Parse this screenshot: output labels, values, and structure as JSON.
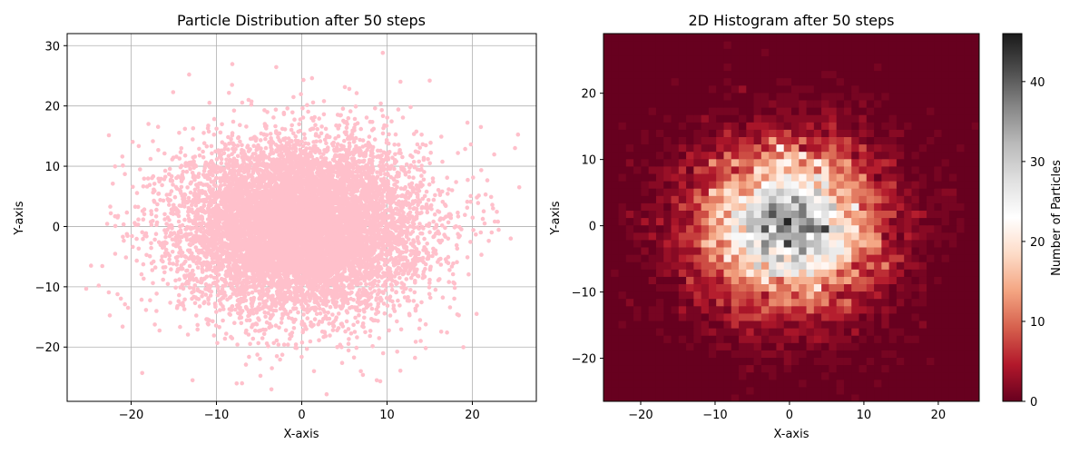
{
  "chart_data": [
    {
      "type": "scatter",
      "title": "Particle Distribution after 50 steps",
      "xlabel": "X-axis",
      "ylabel": "Y-axis",
      "xlim": [
        -27.5,
        27.5
      ],
      "ylim": [
        -29,
        32
      ],
      "xticks": [
        -20,
        -10,
        0,
        10,
        20
      ],
      "yticks": [
        -20,
        -10,
        0,
        10,
        20,
        30
      ],
      "xtick_labels": [
        "−20",
        "−10",
        "0",
        "10",
        "20"
      ],
      "ytick_labels": [
        "−20",
        "−10",
        "0",
        "10",
        "20",
        "30"
      ],
      "grid": true,
      "marker_color": "#ffc0cb",
      "distribution": {
        "type": "approx_gaussian",
        "center": [
          0,
          0
        ],
        "std": [
          7,
          7
        ],
        "n_points": 10000
      },
      "sample_points": [
        {
          "x": 9.5,
          "y": 28.8
        },
        {
          "x": -13.2,
          "y": 25.2
        },
        {
          "x": -18.7,
          "y": -24.3
        },
        {
          "x": -24.7,
          "y": -6.5
        },
        {
          "x": 25.5,
          "y": 6.5
        },
        {
          "x": 25.0,
          "y": 13.0
        },
        {
          "x": -12.8,
          "y": -25.5
        },
        {
          "x": -7.0,
          "y": -26.0
        },
        {
          "x": 20.5,
          "y": -14.5
        },
        {
          "x": 21.0,
          "y": 16.5
        },
        {
          "x": 0.2,
          "y": 24.3
        },
        {
          "x": 1.2,
          "y": 24.6
        },
        {
          "x": -21.0,
          "y": -16.6
        },
        {
          "x": -23.8,
          "y": -9.8
        },
        {
          "x": 15.0,
          "y": 24.2
        },
        {
          "x": 24.5,
          "y": -2.0
        },
        {
          "x": 23.0,
          "y": 0.8
        },
        {
          "x": -3.5,
          "y": -23.5
        },
        {
          "x": 8.8,
          "y": -25.5
        }
      ]
    },
    {
      "type": "heatmap",
      "title": "2D Histogram after 50 steps",
      "xlabel": "X-axis",
      "ylabel": "Y-axis",
      "xlim": [
        -25,
        25.5
      ],
      "ylim": [
        -26.5,
        29
      ],
      "xticks": [
        -20,
        -10,
        0,
        10,
        20
      ],
      "yticks": [
        -20,
        -10,
        0,
        10,
        20
      ],
      "xtick_labels": [
        "−20",
        "−10",
        "0",
        "10",
        "20"
      ],
      "ytick_labels": [
        "−20",
        "−10",
        "0",
        "10",
        "20"
      ],
      "bins": [
        50,
        50
      ],
      "peak_count": 46,
      "colormap": "RdGy",
      "colormap_stops": [
        "#67001f",
        "#b2182b",
        "#d6604d",
        "#f4a582",
        "#fddbc7",
        "#ffffff",
        "#e0e0e0",
        "#bababa",
        "#878787",
        "#4d4d4d",
        "#1a1a1a"
      ],
      "colorbar": {
        "label": "Number of Particles",
        "min": 0,
        "max": 46,
        "ticks": [
          0,
          10,
          20,
          30,
          40
        ],
        "tick_labels": [
          "0",
          "10",
          "20",
          "30",
          "40"
        ]
      }
    }
  ]
}
